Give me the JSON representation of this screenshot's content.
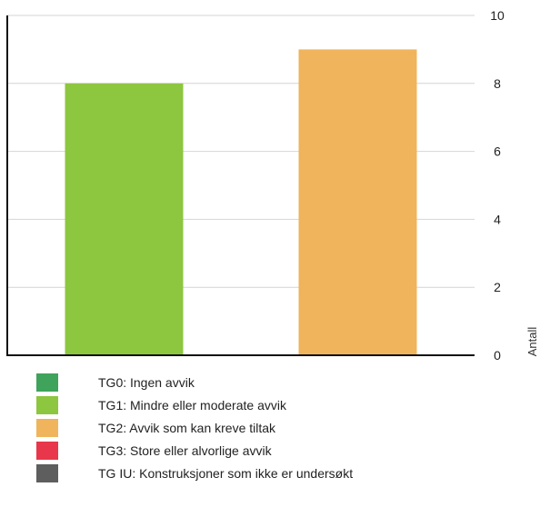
{
  "chart_data": {
    "type": "bar",
    "categories": [
      "TG1: Mindre eller moderate avvik",
      "TG2: Avvik som kan kreve tiltak"
    ],
    "values": [
      8,
      9
    ],
    "bar_colors": [
      "#8dc63f",
      "#efb45c"
    ],
    "ylabel": "Antall",
    "ylim": [
      0,
      10
    ],
    "yticks": [
      "0",
      "2",
      "4",
      "6",
      "8",
      "10"
    ],
    "y_axis_side": "right",
    "grid": true,
    "legend_position": "bottom-left"
  },
  "legend": [
    {
      "label": "TG0: Ingen avvik",
      "color": "#3fa35b"
    },
    {
      "label": "TG1: Mindre eller moderate avvik",
      "color": "#8dc63f"
    },
    {
      "label": "TG2: Avvik som kan kreve tiltak",
      "color": "#efb45c"
    },
    {
      "label": "TG3: Store eller alvorlige avvik",
      "color": "#e8374a"
    },
    {
      "label": "TG IU: Konstruksjoner som ikke er undersøkt",
      "color": "#5e5e5e"
    }
  ]
}
